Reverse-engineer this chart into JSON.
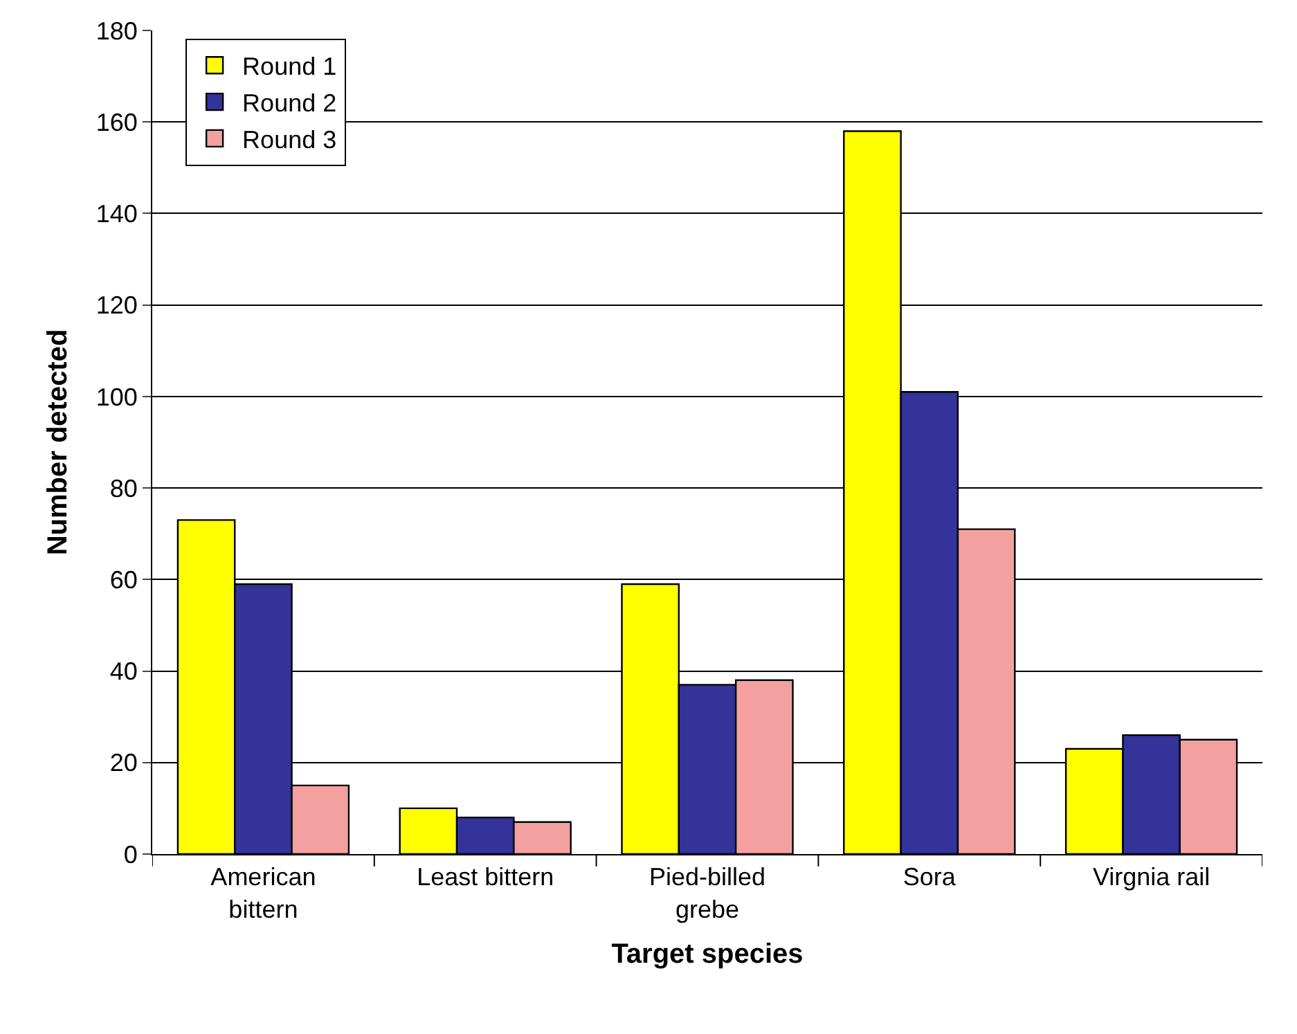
{
  "chart_data": {
    "type": "bar",
    "xlabel": "Target species",
    "ylabel": "Number detected",
    "categories": [
      "American\nbittern",
      "Least bittern",
      "Pied-billed\ngrebe",
      "Sora",
      "Virgnia rail"
    ],
    "series": [
      {
        "name": "Round 1",
        "color": "#ffff00",
        "values": [
          73,
          10,
          59,
          158,
          23
        ]
      },
      {
        "name": "Round 2",
        "color": "#333399",
        "values": [
          59,
          8,
          37,
          101,
          26
        ]
      },
      {
        "name": "Round 3",
        "color": "#f4a0a0",
        "values": [
          15,
          7,
          38,
          71,
          25
        ]
      }
    ],
    "ylim": [
      0,
      180
    ],
    "yticks": [
      0,
      20,
      40,
      60,
      80,
      100,
      120,
      140,
      160,
      180
    ],
    "grid": "y",
    "legend": "top left"
  }
}
